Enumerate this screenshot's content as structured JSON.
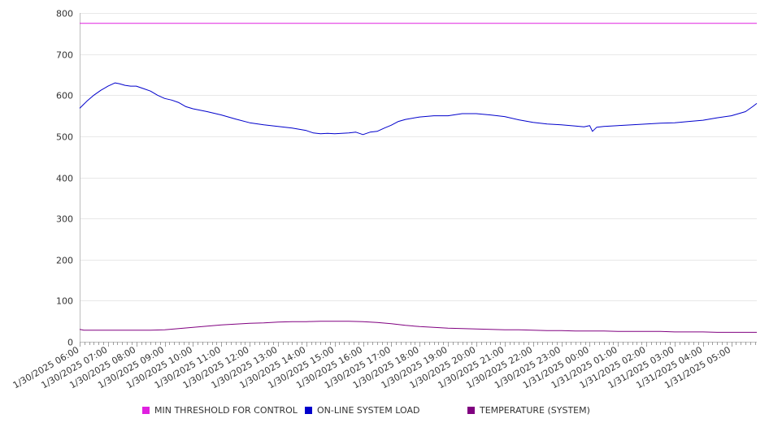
{
  "chart_data": {
    "type": "line",
    "title": "",
    "xlabel": "",
    "ylabel": "",
    "ylim": [
      0,
      800
    ],
    "yticks": [
      0,
      100,
      200,
      300,
      400,
      500,
      600,
      700,
      800
    ],
    "grid": true,
    "legend_position": "bottom",
    "x_tick_labels": [
      "1/30/2025 06:00",
      "1/30/2025 07:00",
      "1/30/2025 08:00",
      "1/30/2025 09:00",
      "1/30/2025 10:00",
      "1/30/2025 11:00",
      "1/30/2025 12:00",
      "1/30/2025 13:00",
      "1/30/2025 14:00",
      "1/30/2025 15:00",
      "1/30/2025 16:00",
      "1/30/2025 17:00",
      "1/30/2025 18:00",
      "1/30/2025 19:00",
      "1/30/2025 20:00",
      "1/30/2025 21:00",
      "1/30/2025 22:00",
      "1/30/2025 23:00",
      "1/31/2025 00:00",
      "1/31/2025 01:00",
      "1/31/2025 02:00",
      "1/31/2025 03:00",
      "1/31/2025 04:00",
      "1/31/2025 05:00"
    ],
    "x_range_hours": [
      0,
      23.9
    ],
    "series": [
      {
        "name": "MIN THRESHOLD FOR CONTROL",
        "color": "#e020e0",
        "x": [
          0,
          23.9
        ],
        "y": [
          775,
          775
        ]
      },
      {
        "name": "ON-LINE SYSTEM LOAD",
        "color": "#0000cc",
        "x": [
          0,
          0.25,
          0.5,
          0.75,
          1,
          1.25,
          1.4,
          1.6,
          1.8,
          2,
          2.25,
          2.5,
          2.75,
          3,
          3.25,
          3.5,
          3.75,
          4,
          4.5,
          5,
          5.5,
          6,
          6.5,
          7,
          7.5,
          8,
          8.25,
          8.5,
          8.75,
          9,
          9.25,
          9.5,
          9.75,
          10,
          10.25,
          10.5,
          10.75,
          11,
          11.25,
          11.5,
          12,
          12.5,
          13,
          13.5,
          14,
          14.5,
          15,
          15.5,
          16,
          16.5,
          17,
          17.5,
          17.8,
          18,
          18.1,
          18.25,
          18.5,
          19,
          19.5,
          20,
          20.5,
          21,
          21.5,
          22,
          22.5,
          23,
          23.5,
          23.75,
          23.9
        ],
        "y": [
          568,
          585,
          600,
          612,
          622,
          630,
          628,
          624,
          622,
          622,
          616,
          610,
          600,
          592,
          588,
          582,
          572,
          567,
          560,
          552,
          542,
          533,
          528,
          524,
          520,
          514,
          508,
          506,
          507,
          506,
          507,
          508,
          510,
          504,
          510,
          512,
          520,
          527,
          536,
          541,
          547,
          550,
          550,
          555,
          555,
          552,
          548,
          540,
          534,
          530,
          528,
          525,
          523,
          526,
          512,
          522,
          524,
          526,
          528,
          530,
          532,
          533,
          536,
          539,
          545,
          550,
          560,
          572,
          580
        ]
      },
      {
        "name": "TEMPERATURE (SYSTEM)",
        "color": "#800080",
        "x": [
          0,
          0.15,
          1,
          2,
          2.5,
          3,
          3.5,
          4,
          4.5,
          5,
          5.5,
          6,
          6.5,
          7,
          7.5,
          8,
          8.5,
          9,
          9.5,
          10,
          10.5,
          11,
          11.5,
          12,
          12.5,
          13,
          13.5,
          14,
          14.5,
          15,
          15.5,
          16,
          16.5,
          17,
          17.5,
          18,
          18.5,
          19,
          19.5,
          20,
          20.5,
          21,
          21.5,
          22,
          22.5,
          23,
          23.9
        ],
        "y": [
          30,
          28,
          28,
          28,
          28,
          29,
          32,
          35,
          38,
          41,
          43,
          45,
          46,
          48,
          49,
          49,
          50,
          50,
          50,
          49,
          47,
          44,
          40,
          37,
          35,
          33,
          32,
          31,
          30,
          29,
          29,
          28,
          27,
          27,
          26,
          26,
          26,
          25,
          25,
          25,
          25,
          24,
          24,
          24,
          23,
          23,
          23
        ]
      }
    ]
  }
}
